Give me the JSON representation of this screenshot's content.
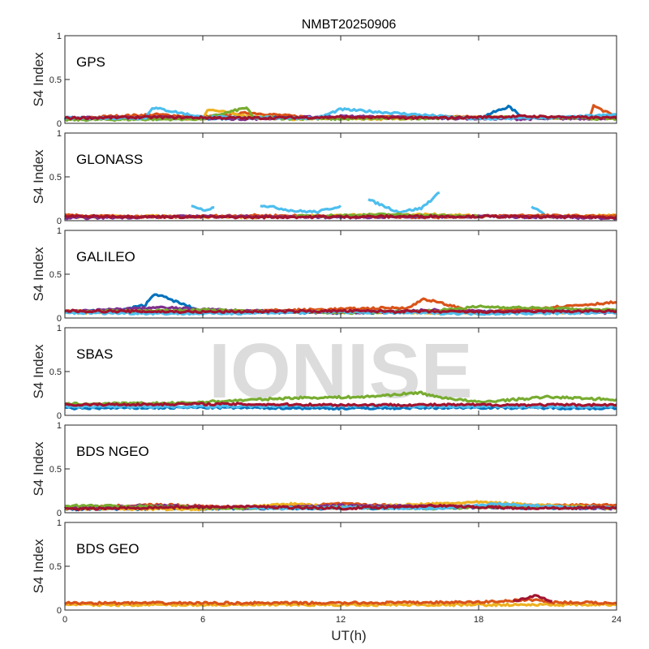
{
  "chart_data": {
    "type": "line",
    "title": "NMBT20250906",
    "xlabel": "UT(h)",
    "ylabel": "S4 Index",
    "xlim": [
      0,
      24
    ],
    "ylim": [
      0,
      1
    ],
    "xticks": [
      "0",
      "6",
      "12",
      "18",
      "24"
    ],
    "yticks": [
      "0",
      "0.5",
      "1"
    ],
    "watermark": "IONISE",
    "colors": [
      "#0072BD",
      "#D95319",
      "#EDB120",
      "#7E2F8E",
      "#77AC30",
      "#4DBEEE",
      "#A2142F"
    ],
    "panels": [
      {
        "label": "GPS",
        "series": [
          {
            "c": 0,
            "x": [
              0,
              3,
              6,
              9,
              12,
              15,
              18,
              19.3,
              20,
              24
            ],
            "y": [
              0.05,
              0.06,
              0.05,
              0.07,
              0.06,
              0.07,
              0.06,
              0.19,
              0.06,
              0.07
            ]
          },
          {
            "c": 1,
            "x": [
              0,
              2,
              4,
              6,
              8,
              10,
              12,
              14,
              16,
              18,
              22.8,
              23,
              24
            ],
            "y": [
              0.05,
              0.08,
              0.1,
              0.07,
              0.12,
              0.08,
              0.06,
              0.07,
              0.08,
              0.07,
              0.06,
              0.2,
              0.07
            ]
          },
          {
            "c": 2,
            "x": [
              4,
              6,
              6.2,
              8,
              10,
              12,
              14,
              16,
              24
            ],
            "y": [
              0.06,
              0.05,
              0.16,
              0.08,
              0.05,
              0.06,
              0.05,
              0.07,
              0.06
            ]
          },
          {
            "c": 3,
            "x": [
              0,
              4,
              8,
              12,
              16,
              20,
              24
            ],
            "y": [
              0.06,
              0.07,
              0.05,
              0.08,
              0.06,
              0.05,
              0.06
            ]
          },
          {
            "c": 4,
            "x": [
              0,
              6,
              7.9,
              8.2,
              12,
              16,
              20,
              24
            ],
            "y": [
              0.04,
              0.05,
              0.18,
              0.06,
              0.05,
              0.06,
              0.07,
              0.05
            ]
          },
          {
            "c": 5,
            "x": [
              0,
              3.5,
              3.8,
              6,
              11,
              12,
              18,
              22,
              24
            ],
            "y": [
              0.06,
              0.06,
              0.18,
              0.07,
              0.06,
              0.16,
              0.05,
              0.07,
              0.1
            ]
          },
          {
            "c": 6,
            "x": [
              0,
              4,
              8,
              12,
              16,
              20,
              24
            ],
            "y": [
              0.06,
              0.07,
              0.06,
              0.07,
              0.06,
              0.08,
              0.06
            ]
          }
        ]
      },
      {
        "label": "GLONASS",
        "series": [
          {
            "c": 5,
            "x": [
              5.5,
              6,
              6.5
            ],
            "y": [
              0.18,
              0.12,
              0.15
            ]
          },
          {
            "c": 5,
            "x": [
              8.5,
              10,
              11,
              12
            ],
            "y": [
              0.18,
              0.11,
              0.1,
              0.17
            ]
          },
          {
            "c": 5,
            "x": [
              13.2,
              14.5,
              15.5,
              16.3
            ],
            "y": [
              0.24,
              0.1,
              0.14,
              0.32
            ]
          },
          {
            "c": 5,
            "x": [
              20.3,
              21
            ],
            "y": [
              0.17,
              0.05
            ]
          },
          {
            "c": 2,
            "x": [
              0,
              4,
              8,
              12,
              16,
              20,
              24
            ],
            "y": [
              0.04,
              0.05,
              0.04,
              0.06,
              0.07,
              0.04,
              0.06
            ]
          },
          {
            "c": 1,
            "x": [
              0,
              4,
              8,
              12,
              16,
              20,
              24
            ],
            "y": [
              0.06,
              0.04,
              0.06,
              0.05,
              0.04,
              0.06,
              0.05
            ]
          },
          {
            "c": 3,
            "x": [
              0,
              6,
              12,
              18,
              24
            ],
            "y": [
              0.03,
              0.05,
              0.04,
              0.05,
              0.03
            ]
          },
          {
            "c": 4,
            "x": [
              10,
              14,
              18
            ],
            "y": [
              0.05,
              0.07,
              0.05
            ]
          },
          {
            "c": 6,
            "x": [
              0,
              8,
              16,
              24
            ],
            "y": [
              0.05,
              0.04,
              0.05,
              0.04
            ]
          }
        ]
      },
      {
        "label": "GALILEO",
        "series": [
          {
            "c": 0,
            "x": [
              0,
              2.5,
              3.5,
              3.9,
              6,
              12,
              18,
              24
            ],
            "y": [
              0.07,
              0.09,
              0.15,
              0.28,
              0.07,
              0.06,
              0.07,
              0.08
            ]
          },
          {
            "c": 1,
            "x": [
              0,
              5,
              10,
              15,
              15.6,
              18,
              24
            ],
            "y": [
              0.08,
              0.07,
              0.09,
              0.12,
              0.22,
              0.06,
              0.18
            ]
          },
          {
            "c": 2,
            "x": [
              0,
              6,
              12,
              18,
              24
            ],
            "y": [
              0.06,
              0.08,
              0.07,
              0.06,
              0.07
            ]
          },
          {
            "c": 3,
            "x": [
              0,
              4,
              8,
              12,
              16,
              20,
              24
            ],
            "y": [
              0.07,
              0.12,
              0.08,
              0.06,
              0.09,
              0.07,
              0.06
            ]
          },
          {
            "c": 4,
            "x": [
              0,
              6,
              12,
              16,
              18,
              24
            ],
            "y": [
              0.07,
              0.09,
              0.06,
              0.08,
              0.13,
              0.09
            ]
          },
          {
            "c": 5,
            "x": [
              0,
              6,
              12,
              18,
              24
            ],
            "y": [
              0.06,
              0.05,
              0.07,
              0.05,
              0.06
            ]
          },
          {
            "c": 6,
            "x": [
              0,
              6,
              12,
              18,
              24
            ],
            "y": [
              0.08,
              0.07,
              0.08,
              0.07,
              0.08
            ]
          }
        ]
      },
      {
        "label": "SBAS",
        "series": [
          {
            "c": 0,
            "x": [
              0,
              6,
              12,
              18,
              24
            ],
            "y": [
              0.08,
              0.09,
              0.08,
              0.09,
              0.08
            ]
          },
          {
            "c": 5,
            "x": [
              0,
              6,
              12,
              18,
              24
            ],
            "y": [
              0.1,
              0.1,
              0.11,
              0.1,
              0.1
            ]
          },
          {
            "c": 4,
            "x": [
              0,
              5,
              10,
              13,
              15.5,
              16,
              18,
              21,
              24
            ],
            "y": [
              0.13,
              0.14,
              0.2,
              0.21,
              0.26,
              0.22,
              0.15,
              0.21,
              0.18
            ]
          },
          {
            "c": 6,
            "x": [
              0,
              6,
              12,
              18,
              24
            ],
            "y": [
              0.12,
              0.13,
              0.12,
              0.12,
              0.12
            ]
          }
        ]
      },
      {
        "label": "BDS NGEO",
        "series": [
          {
            "c": 0,
            "x": [
              0,
              6,
              12,
              18,
              24
            ],
            "y": [
              0.04,
              0.05,
              0.05,
              0.06,
              0.05
            ]
          },
          {
            "c": 1,
            "x": [
              0,
              4,
              8,
              12,
              16,
              20,
              24
            ],
            "y": [
              0.06,
              0.09,
              0.06,
              0.1,
              0.07,
              0.08,
              0.09
            ]
          },
          {
            "c": 2,
            "x": [
              0,
              6,
              10,
              12,
              18,
              24
            ],
            "y": [
              0.05,
              0.04,
              0.1,
              0.06,
              0.12,
              0.05
            ]
          },
          {
            "c": 3,
            "x": [
              0,
              4,
              8,
              12,
              16,
              20,
              24
            ],
            "y": [
              0.06,
              0.08,
              0.05,
              0.08,
              0.07,
              0.06,
              0.05
            ]
          },
          {
            "c": 4,
            "x": [
              0,
              4,
              8,
              12,
              16,
              20,
              24
            ],
            "y": [
              0.08,
              0.07,
              0.05,
              0.06,
              0.05,
              0.07,
              0.06
            ]
          },
          {
            "c": 5,
            "x": [
              8,
              12,
              16,
              19,
              21,
              24
            ],
            "y": [
              0.05,
              0.06,
              0.05,
              0.1,
              0.07,
              0.06
            ]
          },
          {
            "c": 6,
            "x": [
              0,
              4,
              8,
              12,
              16,
              20,
              24
            ],
            "y": [
              0.04,
              0.06,
              0.07,
              0.05,
              0.08,
              0.05,
              0.06
            ]
          }
        ]
      },
      {
        "label": "BDS GEO",
        "series": [
          {
            "c": 2,
            "x": [
              0,
              6,
              12,
              18,
              24
            ],
            "y": [
              0.06,
              0.06,
              0.06,
              0.06,
              0.06
            ]
          },
          {
            "c": 1,
            "x": [
              0,
              6,
              12,
              18,
              20.5,
              21,
              24
            ],
            "y": [
              0.08,
              0.08,
              0.08,
              0.09,
              0.12,
              0.09,
              0.08
            ]
          },
          {
            "c": 6,
            "x": [
              19.5,
              20.5,
              21.2
            ],
            "y": [
              0.1,
              0.17,
              0.1
            ]
          }
        ]
      }
    ]
  }
}
